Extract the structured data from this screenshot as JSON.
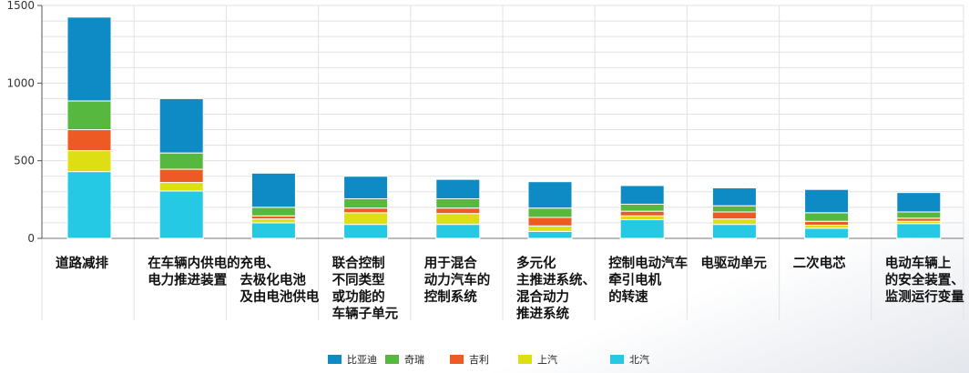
{
  "chart_data": {
    "type": "bar",
    "stacked": true,
    "grid": true,
    "legend_position": "bottom",
    "ylim": [
      0,
      1500
    ],
    "yticks": [
      0,
      500,
      1000,
      1500
    ],
    "categories": [
      [
        "道路减排"
      ],
      [
        "在车辆内供电的",
        "电力推进装置"
      ],
      [
        "充电、",
        "去极化电池",
        "及由电池供电"
      ],
      [
        "联合控制",
        "不同类型",
        "或功能的",
        "车辆子单元"
      ],
      [
        "用于混合",
        "动力汽车的",
        "控制系统"
      ],
      [
        "多元化",
        "主推进系统、",
        "混合动力",
        "推进系统"
      ],
      [
        "控制电动汽车",
        "牵引电机",
        "的转速"
      ],
      [
        "电驱动单元"
      ],
      [
        "二次电芯"
      ],
      [
        "电动车辆上",
        "的安全装置、",
        "监测运行变量"
      ]
    ],
    "series": [
      {
        "name": "北汽",
        "color": "#26c9e3",
        "values": [
          430,
          305,
          100,
          90,
          90,
          45,
          120,
          90,
          65,
          95
        ]
      },
      {
        "name": "上汽",
        "color": "#dede14",
        "values": [
          135,
          55,
          25,
          75,
          70,
          35,
          25,
          35,
          20,
          15
        ]
      },
      {
        "name": "吉利",
        "color": "#ee5a24",
        "values": [
          135,
          85,
          20,
          30,
          35,
          55,
          30,
          45,
          25,
          20
        ]
      },
      {
        "name": "奇瑞",
        "color": "#57b83f",
        "values": [
          185,
          105,
          55,
          60,
          60,
          60,
          45,
          40,
          55,
          40
        ]
      },
      {
        "name": "比亚迪",
        "color": "#0e8bc5",
        "values": [
          540,
          350,
          220,
          145,
          125,
          170,
          120,
          115,
          150,
          125
        ]
      }
    ],
    "legend_order": [
      "比亚迪",
      "奇瑞",
      "吉利",
      "上汽",
      "北汽"
    ]
  }
}
